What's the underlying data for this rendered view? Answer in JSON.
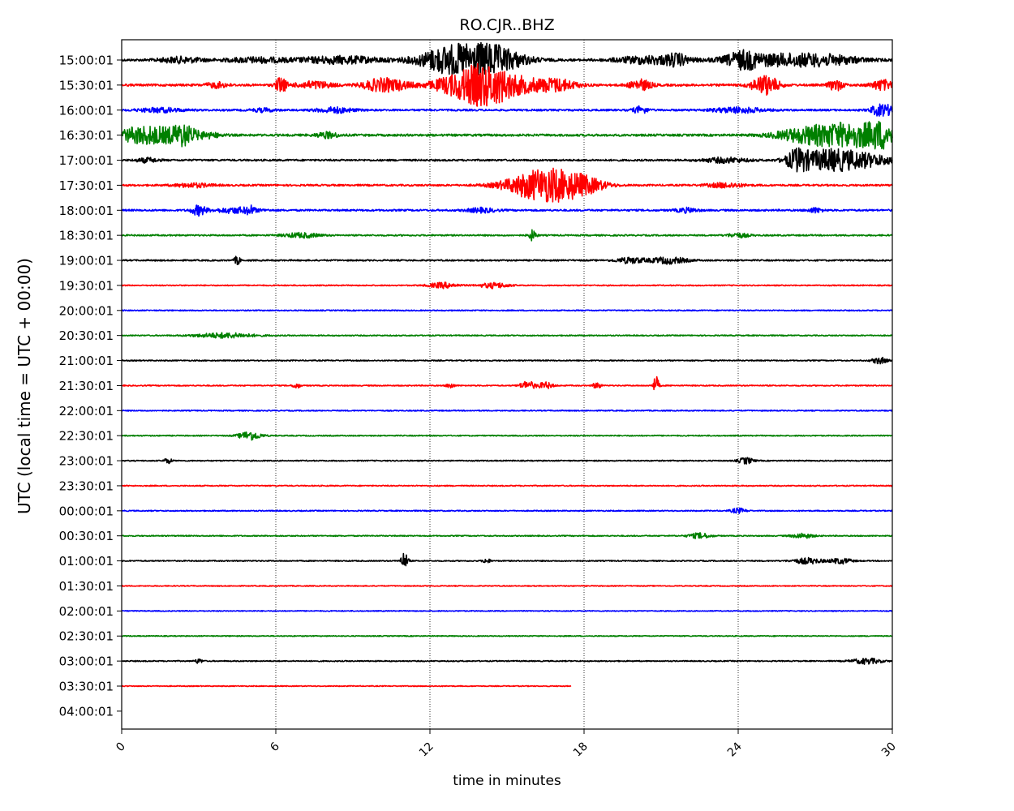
{
  "chart_data": {
    "type": "line",
    "title": "RO.CJR..BHZ",
    "xlabel": "time in minutes",
    "ylabel": "UTC (local time = UTC + 00:00)",
    "xlim": [
      0,
      30
    ],
    "x_ticks": [
      "0",
      "6",
      "12",
      "18",
      "24",
      "30"
    ],
    "x_tick_values": [
      0,
      6,
      12,
      18,
      24,
      30
    ],
    "grid": "vertical dotted at x ticks",
    "y_tick_labels": [
      "15:00:01",
      "15:30:01",
      "16:00:01",
      "16:30:01",
      "17:00:01",
      "17:30:01",
      "18:00:01",
      "18:30:01",
      "19:00:01",
      "19:30:01",
      "20:00:01",
      "20:30:01",
      "21:00:01",
      "21:30:01",
      "22:00:01",
      "22:30:01",
      "23:00:01",
      "23:30:01",
      "00:00:01",
      "00:30:01",
      "01:00:01",
      "01:30:01",
      "02:00:01",
      "02:30:01",
      "03:00:01",
      "03:30:01",
      "04:00:01"
    ],
    "color_cycle": [
      "#000000",
      "#ff0000",
      "#0000ff",
      "#008000"
    ],
    "traces": [
      {
        "row": "15:00:01",
        "end_min": 30,
        "noise": 0.6,
        "events": [
          [
            2.3,
            0.6,
            1.6
          ],
          [
            5.2,
            0.8,
            1.4
          ],
          [
            8.5,
            1.2,
            2.0
          ],
          [
            12.5,
            0.6,
            2.8
          ],
          [
            13.5,
            1.2,
            6.5
          ],
          [
            14.5,
            0.8,
            4.0
          ],
          [
            20.5,
            0.9,
            2.2
          ],
          [
            21.6,
            0.3,
            2.6
          ],
          [
            24.2,
            0.4,
            3.5
          ],
          [
            25.5,
            1.5,
            3.0
          ],
          [
            27.5,
            1.0,
            1.8
          ]
        ]
      },
      {
        "row": "15:30:01",
        "end_min": 30,
        "noise": 0.6,
        "events": [
          [
            3.7,
            0.3,
            1.5
          ],
          [
            6.2,
            0.15,
            4.5
          ],
          [
            7.5,
            0.5,
            2.0
          ],
          [
            9.8,
            0.4,
            1.8
          ],
          [
            10.5,
            0.5,
            3.0
          ],
          [
            13.2,
            0.8,
            5.0
          ],
          [
            14.2,
            0.7,
            8.0
          ],
          [
            15.5,
            1.0,
            3.5
          ],
          [
            17.0,
            0.5,
            2.5
          ],
          [
            20.2,
            0.3,
            3.0
          ],
          [
            24.8,
            0.3,
            2.5
          ],
          [
            25.2,
            0.3,
            4.0
          ],
          [
            27.8,
            0.2,
            3.0
          ],
          [
            29.6,
            0.3,
            2.8
          ]
        ]
      },
      {
        "row": "16:00:01",
        "end_min": 30,
        "noise": 0.5,
        "events": [
          [
            1.5,
            0.6,
            1.2
          ],
          [
            5.5,
            0.3,
            1.0
          ],
          [
            8.3,
            0.5,
            1.5
          ],
          [
            20.2,
            0.2,
            2.0
          ],
          [
            24.0,
            0.7,
            1.5
          ],
          [
            29.4,
            0.2,
            1.8
          ],
          [
            29.8,
            0.3,
            2.5
          ]
        ]
      },
      {
        "row": "16:30:01",
        "end_min": 30,
        "noise": 0.6,
        "events": [
          [
            0.5,
            0.5,
            3.0
          ],
          [
            1.5,
            0.7,
            4.0
          ],
          [
            2.4,
            0.3,
            4.5
          ],
          [
            3.3,
            0.4,
            1.5
          ],
          [
            8.0,
            0.3,
            1.6
          ],
          [
            26.5,
            0.8,
            2.0
          ],
          [
            28.3,
            1.3,
            6.5
          ],
          [
            29.6,
            0.4,
            4.0
          ]
        ]
      },
      {
        "row": "17:00:01",
        "end_min": 30,
        "noise": 0.5,
        "events": [
          [
            1.0,
            0.3,
            1.2
          ],
          [
            23.5,
            0.6,
            1.4
          ],
          [
            26.3,
            0.3,
            5.0
          ],
          [
            27.5,
            0.8,
            5.5
          ],
          [
            29.0,
            0.8,
            3.0
          ]
        ]
      },
      {
        "row": "17:30:01",
        "end_min": 30,
        "noise": 0.5,
        "events": [
          [
            2.8,
            0.5,
            1.1
          ],
          [
            15.8,
            0.8,
            4.0
          ],
          [
            16.8,
            0.8,
            7.0
          ],
          [
            18.0,
            0.6,
            3.5
          ],
          [
            23.5,
            0.5,
            1.3
          ]
        ]
      },
      {
        "row": "18:00:01",
        "end_min": 30,
        "noise": 0.5,
        "events": [
          [
            3.0,
            0.2,
            2.8
          ],
          [
            4.5,
            0.6,
            1.5
          ],
          [
            5.0,
            0.1,
            1.8
          ],
          [
            14.0,
            0.4,
            1.2
          ],
          [
            22.0,
            0.3,
            1.2
          ],
          [
            27.0,
            0.2,
            1.3
          ]
        ]
      },
      {
        "row": "18:30:01",
        "end_min": 30,
        "noise": 0.4,
        "events": [
          [
            7.0,
            0.5,
            1.3
          ],
          [
            16.0,
            0.1,
            3.0
          ],
          [
            24.0,
            0.3,
            1.2
          ]
        ]
      },
      {
        "row": "19:00:01",
        "end_min": 30,
        "noise": 0.4,
        "events": [
          [
            4.5,
            0.08,
            2.5
          ],
          [
            19.8,
            0.4,
            1.6
          ],
          [
            21.3,
            0.5,
            1.8
          ]
        ]
      },
      {
        "row": "19:30:01",
        "end_min": 30,
        "noise": 0.3,
        "events": [
          [
            12.5,
            0.4,
            1.5
          ],
          [
            14.5,
            0.4,
            1.5
          ]
        ]
      },
      {
        "row": "20:00:01",
        "end_min": 30,
        "noise": 0.3,
        "events": []
      },
      {
        "row": "20:30:01",
        "end_min": 30,
        "noise": 0.3,
        "events": [
          [
            4.0,
            0.8,
            1.4
          ]
        ]
      },
      {
        "row": "21:00:01",
        "end_min": 30,
        "noise": 0.3,
        "events": [
          [
            29.5,
            0.2,
            1.8
          ]
        ]
      },
      {
        "row": "21:30:01",
        "end_min": 30,
        "noise": 0.3,
        "events": [
          [
            6.8,
            0.1,
            1.6
          ],
          [
            12.8,
            0.1,
            1.6
          ],
          [
            15.8,
            0.2,
            2.5
          ],
          [
            16.5,
            0.2,
            1.8
          ],
          [
            18.5,
            0.1,
            2.0
          ],
          [
            20.8,
            0.08,
            5.0
          ]
        ]
      },
      {
        "row": "22:00:01",
        "end_min": 30,
        "noise": 0.3,
        "events": []
      },
      {
        "row": "22:30:01",
        "end_min": 30,
        "noise": 0.3,
        "events": [
          [
            5.0,
            0.3,
            2.5
          ]
        ]
      },
      {
        "row": "23:00:01",
        "end_min": 30,
        "noise": 0.3,
        "events": [
          [
            1.8,
            0.1,
            1.6
          ],
          [
            24.3,
            0.2,
            1.8
          ]
        ]
      },
      {
        "row": "23:30:01",
        "end_min": 30,
        "noise": 0.3,
        "events": []
      },
      {
        "row": "00:00:01",
        "end_min": 30,
        "noise": 0.3,
        "events": [
          [
            24.0,
            0.2,
            1.4
          ]
        ]
      },
      {
        "row": "00:30:01",
        "end_min": 30,
        "noise": 0.3,
        "events": [
          [
            22.5,
            0.3,
            1.5
          ],
          [
            26.5,
            0.3,
            1.3
          ]
        ]
      },
      {
        "row": "01:00:01",
        "end_min": 30,
        "noise": 0.3,
        "events": [
          [
            11.0,
            0.1,
            4.5
          ],
          [
            14.2,
            0.1,
            1.4
          ],
          [
            26.7,
            0.4,
            1.6
          ],
          [
            28.0,
            0.3,
            1.5
          ]
        ]
      },
      {
        "row": "01:30:01",
        "end_min": 30,
        "noise": 0.25,
        "events": []
      },
      {
        "row": "02:00:01",
        "end_min": 30,
        "noise": 0.25,
        "events": []
      },
      {
        "row": "02:30:01",
        "end_min": 30,
        "noise": 0.25,
        "events": []
      },
      {
        "row": "03:00:01",
        "end_min": 30,
        "noise": 0.3,
        "events": [
          [
            3.0,
            0.1,
            1.3
          ],
          [
            29.0,
            0.4,
            1.6
          ]
        ]
      },
      {
        "row": "03:30:01",
        "end_min": 17.5,
        "noise": 0.25,
        "events": []
      }
    ]
  }
}
